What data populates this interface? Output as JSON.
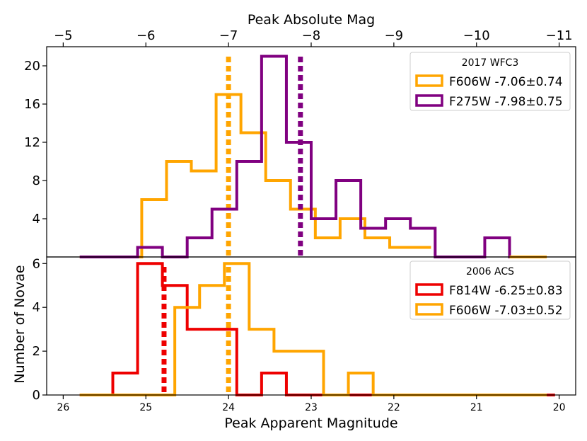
{
  "chart_data": [
    {
      "type": "step-histogram",
      "panel": "top",
      "x_top_label": "Peak Absolute Mag",
      "x_top_ticks": [
        "−5",
        "−6",
        "−7",
        "−8",
        "−9",
        "−10",
        "−11"
      ],
      "x_top_values": [
        -5,
        -6,
        -7,
        -8,
        -9,
        -10,
        -11
      ],
      "ylim": [
        0,
        22
      ],
      "y_ticks": [
        "4",
        "8",
        "12",
        "16",
        "20"
      ],
      "y_tick_values": [
        4,
        8,
        12,
        16,
        20
      ],
      "legend_title": "2017 WFC3",
      "legend_position": "top-right",
      "series": [
        {
          "name": "F606W -7.06±0.74",
          "color": "#FFA500",
          "edges": [
            25.8,
            25.05,
            24.75,
            24.45,
            24.15,
            23.85,
            23.55,
            23.25,
            22.95,
            22.65,
            22.35,
            22.05,
            21.75,
            21.55
          ],
          "counts": [
            0,
            6,
            10,
            9,
            17,
            13,
            8,
            5,
            2,
            4,
            2,
            1,
            1
          ],
          "mean_line": 24.0
        },
        {
          "name": "F275W -7.98±0.75",
          "color": "#800080",
          "edges": [
            25.8,
            25.1,
            24.8,
            24.5,
            24.2,
            23.9,
            23.6,
            23.3,
            23.0,
            22.7,
            22.4,
            22.1,
            21.8,
            21.5,
            21.2,
            20.9,
            20.6,
            20.3
          ],
          "counts": [
            0,
            1,
            0,
            2,
            5,
            10,
            21,
            12,
            4,
            8,
            3,
            4,
            3,
            0,
            0,
            2,
            0
          ],
          "mean_line": 23.13
        },
        {
          "name": "",
          "color": "#FFA500",
          "edges": [
            20.6,
            20.15
          ],
          "counts": [
            0
          ],
          "mean_line": null
        }
      ]
    },
    {
      "type": "step-histogram",
      "panel": "bottom",
      "xlabel": "Peak Apparent Magnitude",
      "ylabel": "Number of Novae",
      "xlim": [
        26.2,
        19.8
      ],
      "x_ticks": [
        "26",
        "25",
        "24",
        "23",
        "22",
        "21",
        "20"
      ],
      "x_tick_values": [
        26,
        25,
        24,
        23,
        22,
        21,
        20
      ],
      "ylim": [
        0,
        6.3
      ],
      "y_ticks": [
        "0",
        "2",
        "4",
        "6"
      ],
      "y_tick_values": [
        0,
        2,
        4,
        6
      ],
      "legend_title": "2006 ACS",
      "legend_position": "top-right",
      "series": [
        {
          "name": "F814W -6.25±0.83",
          "color": "#EE0000",
          "edges": [
            25.8,
            25.4,
            25.1,
            24.8,
            24.5,
            23.9,
            23.6,
            23.3,
            22.7,
            22.4,
            22.1,
            21.8,
            21.5,
            21.2,
            20.9,
            20.6,
            20.3,
            20.05
          ],
          "counts": [
            0,
            1,
            6,
            5,
            3,
            0,
            1,
            0,
            0,
            0,
            0,
            0,
            0,
            0,
            0,
            0,
            0
          ],
          "mean_line": 24.78,
          "mean_line_note": ""
        },
        {
          "name": "F606W -7.03±0.52",
          "color": "#FFA500",
          "edges": [
            25.8,
            24.65,
            24.35,
            24.05,
            23.75,
            23.45,
            23.15,
            22.85,
            22.55,
            22.25,
            21.95,
            21.65,
            21.35,
            21.05,
            20.75,
            20.45,
            20.15
          ],
          "counts": [
            0,
            4,
            5,
            6,
            3,
            2,
            2,
            0,
            1,
            0,
            0,
            0,
            0,
            0,
            0,
            0
          ],
          "mean_line": 24.0
        }
      ]
    }
  ]
}
